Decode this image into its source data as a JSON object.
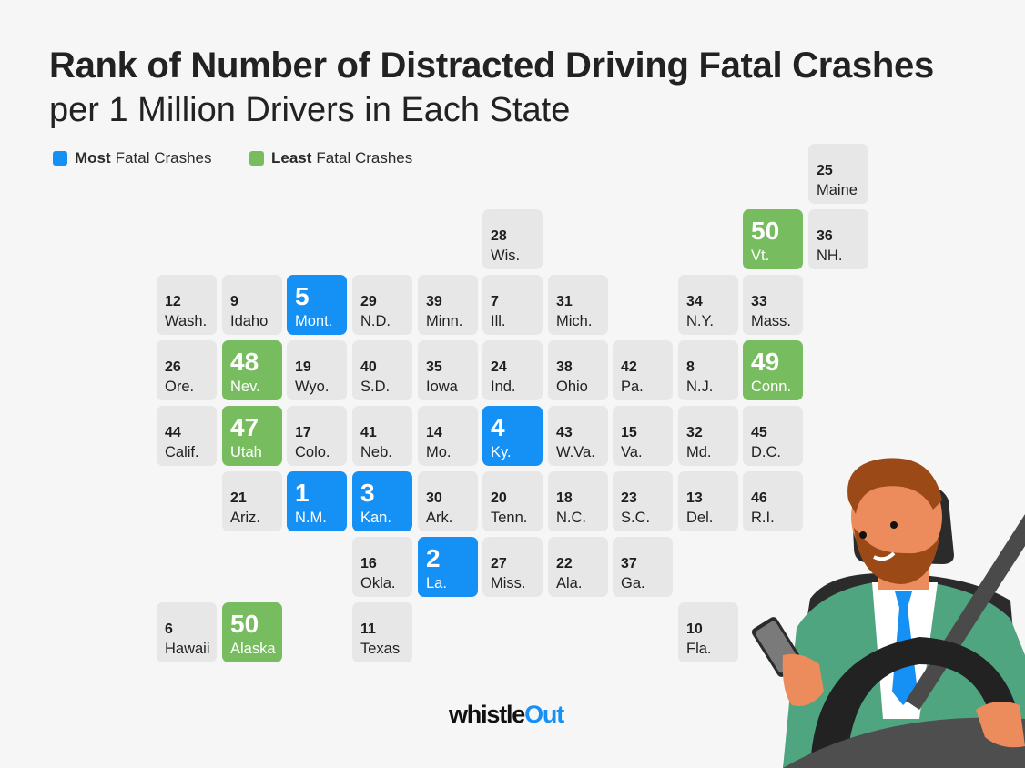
{
  "title": {
    "line1": "Rank of Number of Distracted Driving Fatal Crashes",
    "line2": "per 1 Million Drivers in Each State"
  },
  "legend": [
    {
      "bold": "Most",
      "label": "Fatal Crashes",
      "color": "#1590f5"
    },
    {
      "bold": "Least",
      "label": "Fatal Crashes",
      "color": "#77bd5f"
    }
  ],
  "brand": {
    "part1": "whistle",
    "part2": "Out"
  },
  "colors": {
    "most": "#1590f5",
    "least": "#77bd5f",
    "neutral": "#e7e7e7",
    "background": "#f6f6f6"
  },
  "chart_data": {
    "type": "table",
    "title": "Rank of Number of Distracted Driving Fatal Crashes per 1 Million Drivers in Each State",
    "layout": "tile grid map (col,row)",
    "legend": [
      "Most Fatal Crashes",
      "Least Fatal Crashes"
    ],
    "tiles": [
      {
        "state": "Maine",
        "rank": 25,
        "col": 10,
        "row": 0,
        "cat": "neutral"
      },
      {
        "state": "Wis.",
        "rank": 28,
        "col": 5,
        "row": 1,
        "cat": "neutral"
      },
      {
        "state": "Vt.",
        "rank": 50,
        "col": 9,
        "row": 1,
        "cat": "least"
      },
      {
        "state": "NH.",
        "rank": 36,
        "col": 10,
        "row": 1,
        "cat": "neutral"
      },
      {
        "state": "Wash.",
        "rank": 12,
        "col": 0,
        "row": 2,
        "cat": "neutral"
      },
      {
        "state": "Idaho",
        "rank": 9,
        "col": 1,
        "row": 2,
        "cat": "neutral"
      },
      {
        "state": "Mont.",
        "rank": 5,
        "col": 2,
        "row": 2,
        "cat": "most"
      },
      {
        "state": "N.D.",
        "rank": 29,
        "col": 3,
        "row": 2,
        "cat": "neutral"
      },
      {
        "state": "Minn.",
        "rank": 39,
        "col": 4,
        "row": 2,
        "cat": "neutral"
      },
      {
        "state": "Ill.",
        "rank": 7,
        "col": 5,
        "row": 2,
        "cat": "neutral"
      },
      {
        "state": "Mich.",
        "rank": 31,
        "col": 6,
        "row": 2,
        "cat": "neutral"
      },
      {
        "state": "N.Y.",
        "rank": 34,
        "col": 8,
        "row": 2,
        "cat": "neutral"
      },
      {
        "state": "Mass.",
        "rank": 33,
        "col": 9,
        "row": 2,
        "cat": "neutral"
      },
      {
        "state": "Ore.",
        "rank": 26,
        "col": 0,
        "row": 3,
        "cat": "neutral"
      },
      {
        "state": "Nev.",
        "rank": 48,
        "col": 1,
        "row": 3,
        "cat": "least"
      },
      {
        "state": "Wyo.",
        "rank": 19,
        "col": 2,
        "row": 3,
        "cat": "neutral"
      },
      {
        "state": "S.D.",
        "rank": 40,
        "col": 3,
        "row": 3,
        "cat": "neutral"
      },
      {
        "state": "Iowa",
        "rank": 35,
        "col": 4,
        "row": 3,
        "cat": "neutral"
      },
      {
        "state": "Ind.",
        "rank": 24,
        "col": 5,
        "row": 3,
        "cat": "neutral"
      },
      {
        "state": "Ohio",
        "rank": 38,
        "col": 6,
        "row": 3,
        "cat": "neutral"
      },
      {
        "state": "Pa.",
        "rank": 42,
        "col": 7,
        "row": 3,
        "cat": "neutral"
      },
      {
        "state": "N.J.",
        "rank": 8,
        "col": 8,
        "row": 3,
        "cat": "neutral"
      },
      {
        "state": "Conn.",
        "rank": 49,
        "col": 9,
        "row": 3,
        "cat": "least"
      },
      {
        "state": "Calif.",
        "rank": 44,
        "col": 0,
        "row": 4,
        "cat": "neutral"
      },
      {
        "state": "Utah",
        "rank": 47,
        "col": 1,
        "row": 4,
        "cat": "least"
      },
      {
        "state": "Colo.",
        "rank": 17,
        "col": 2,
        "row": 4,
        "cat": "neutral"
      },
      {
        "state": "Neb.",
        "rank": 41,
        "col": 3,
        "row": 4,
        "cat": "neutral"
      },
      {
        "state": "Mo.",
        "rank": 14,
        "col": 4,
        "row": 4,
        "cat": "neutral"
      },
      {
        "state": "Ky.",
        "rank": 4,
        "col": 5,
        "row": 4,
        "cat": "most"
      },
      {
        "state": "W.Va.",
        "rank": 43,
        "col": 6,
        "row": 4,
        "cat": "neutral"
      },
      {
        "state": "Va.",
        "rank": 15,
        "col": 7,
        "row": 4,
        "cat": "neutral"
      },
      {
        "state": "Md.",
        "rank": 32,
        "col": 8,
        "row": 4,
        "cat": "neutral"
      },
      {
        "state": "D.C.",
        "rank": 45,
        "col": 9,
        "row": 4,
        "cat": "neutral"
      },
      {
        "state": "Ariz.",
        "rank": 21,
        "col": 1,
        "row": 5,
        "cat": "neutral"
      },
      {
        "state": "N.M.",
        "rank": 1,
        "col": 2,
        "row": 5,
        "cat": "most"
      },
      {
        "state": "Kan.",
        "rank": 3,
        "col": 3,
        "row": 5,
        "cat": "most"
      },
      {
        "state": "Ark.",
        "rank": 30,
        "col": 4,
        "row": 5,
        "cat": "neutral"
      },
      {
        "state": "Tenn.",
        "rank": 20,
        "col": 5,
        "row": 5,
        "cat": "neutral"
      },
      {
        "state": "N.C.",
        "rank": 18,
        "col": 6,
        "row": 5,
        "cat": "neutral"
      },
      {
        "state": "S.C.",
        "rank": 23,
        "col": 7,
        "row": 5,
        "cat": "neutral"
      },
      {
        "state": "Del.",
        "rank": 13,
        "col": 8,
        "row": 5,
        "cat": "neutral"
      },
      {
        "state": "R.I.",
        "rank": 46,
        "col": 9,
        "row": 5,
        "cat": "neutral"
      },
      {
        "state": "Okla.",
        "rank": 16,
        "col": 3,
        "row": 6,
        "cat": "neutral"
      },
      {
        "state": "La.",
        "rank": 2,
        "col": 4,
        "row": 6,
        "cat": "most"
      },
      {
        "state": "Miss.",
        "rank": 27,
        "col": 5,
        "row": 6,
        "cat": "neutral"
      },
      {
        "state": "Ala.",
        "rank": 22,
        "col": 6,
        "row": 6,
        "cat": "neutral"
      },
      {
        "state": "Ga.",
        "rank": 37,
        "col": 7,
        "row": 6,
        "cat": "neutral"
      },
      {
        "state": "Hawaii",
        "rank": 6,
        "col": 0,
        "row": 7,
        "cat": "neutral"
      },
      {
        "state": "Alaska",
        "rank": 50,
        "col": 1,
        "row": 7,
        "cat": "least"
      },
      {
        "state": "Texas",
        "rank": 11,
        "col": 3,
        "row": 7,
        "cat": "neutral"
      },
      {
        "state": "Fla.",
        "rank": 10,
        "col": 8,
        "row": 7,
        "cat": "neutral"
      }
    ]
  }
}
